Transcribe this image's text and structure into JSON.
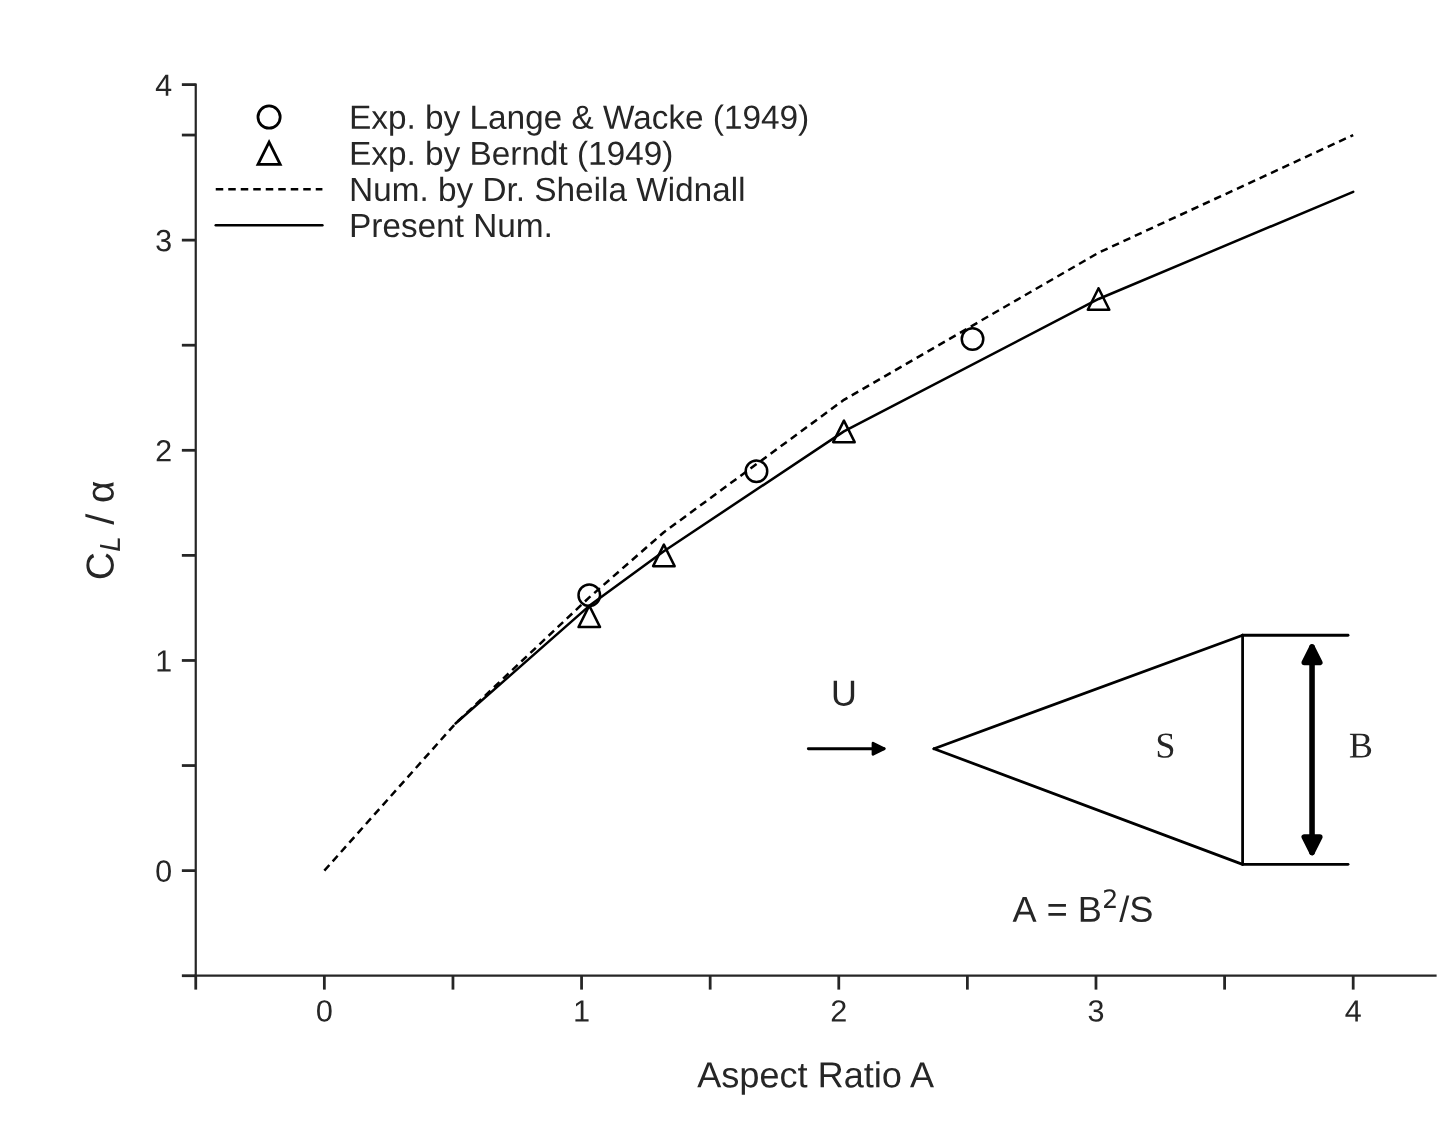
{
  "chart_data": {
    "type": "line",
    "xlabel": "Aspect Ratio A",
    "ylabel": "C$_{L}$ / α",
    "series": [
      {
        "name": "Exp. by Lange & Wacke (1949)",
        "type": "scatter",
        "marker": "circle",
        "color": "#000000",
        "x": [
          1.03,
          1.68,
          2.52
        ],
        "values": [
          1.31,
          1.9,
          2.53
        ]
      },
      {
        "name": "Exp. by Berndt (1949)",
        "type": "scatter",
        "marker": "triangle",
        "color": "#000000",
        "x": [
          1.03,
          1.32,
          2.02,
          3.01
        ],
        "values": [
          1.21,
          1.5,
          2.09,
          2.72
        ]
      },
      {
        "name": "Num. by Dr. Sheila Widnall",
        "line_style": "dashed",
        "color": "#000000",
        "x": [
          0,
          0.51,
          1.03,
          1.32,
          2.02,
          3.01,
          4.0
        ],
        "values": [
          0,
          0.7,
          1.3,
          1.61,
          2.24,
          2.94,
          3.5
        ]
      },
      {
        "name": "Present Num.",
        "line_style": "solid",
        "color": "#000000",
        "x": [
          0.51,
          1.03,
          1.32,
          2.02,
          3.01,
          4.0
        ],
        "values": [
          0.7,
          1.26,
          1.52,
          2.09,
          2.72,
          3.23
        ]
      }
    ],
    "xlim": [
      -0.5,
      4.32
    ],
    "ylim": [
      -0.5,
      3.74
    ],
    "xticks": [
      {
        "value": -0.5,
        "label": null
      },
      0,
      {
        "value": 0.5,
        "label": null
      },
      1,
      {
        "value": 1.5,
        "label": null
      },
      2,
      {
        "value": 2.5,
        "label": null
      },
      3,
      {
        "value": 3.5,
        "label": null
      },
      4
    ],
    "yticks": [
      {
        "value": -0.5,
        "label": null
      },
      0,
      {
        "value": 0.5,
        "label": null
      },
      1,
      {
        "value": 1.5,
        "label": null
      },
      2,
      {
        "value": 2.5,
        "label": null
      },
      3,
      {
        "value": 3.5,
        "label": null
      },
      {
        "value": 3.74,
        "label": "4"
      }
    ],
    "annotations": [
      "U",
      "S",
      "B",
      "A = B$^{2}$/S"
    ],
    "legend": "top left",
    "grid": false
  }
}
